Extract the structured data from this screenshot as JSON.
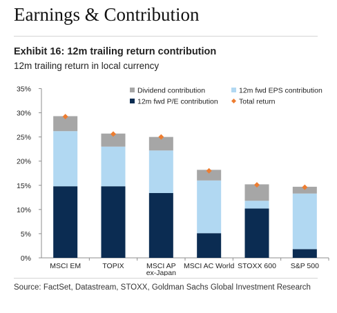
{
  "page": {
    "heading": "Earnings & Contribution",
    "exhibit_title": "Exhibit 16: 12m trailing return contribution",
    "subtitle": "12m trailing return in local currency",
    "source": "Source: FactSet, Datastream, STOXX, Goldman Sachs Global Investment Research"
  },
  "chart_data": {
    "type": "bar",
    "stacked": true,
    "categories": [
      "MSCI EM",
      "TOPIX",
      "MSCI AP ex-Japan",
      "MSCI AC World",
      "STOXX 600",
      "S&P 500"
    ],
    "category_label_lines": [
      [
        "MSCI EM"
      ],
      [
        "TOPIX"
      ],
      [
        "MSCI AP",
        "ex-Japan"
      ],
      [
        "MSCI AC World"
      ],
      [
        "STOXX 600"
      ],
      [
        "S&P 500"
      ]
    ],
    "series": [
      {
        "name": "12m fwd P/E contribution",
        "color": "#0b2c52",
        "values": [
          14.8,
          14.8,
          13.4,
          5.1,
          10.2,
          1.8
        ]
      },
      {
        "name": "12m fwd EPS contribution",
        "color": "#b1d8f2",
        "values": [
          11.4,
          8.2,
          8.8,
          10.9,
          1.6,
          11.5
        ]
      },
      {
        "name": "Dividend contribution",
        "color": "#a6a6a6",
        "values": [
          3.1,
          2.7,
          2.8,
          2.2,
          3.4,
          1.4
        ]
      }
    ],
    "total_return": {
      "name": "Total return",
      "color": "#ed7d31",
      "values": [
        29.2,
        25.6,
        25.0,
        18.0,
        15.1,
        14.6
      ]
    },
    "legend": {
      "position": "top",
      "order": [
        "Dividend contribution",
        "12m fwd EPS contribution",
        "12m fwd P/E contribution",
        "Total return"
      ]
    },
    "ylim": [
      0,
      35
    ],
    "yticks": [
      0,
      5,
      10,
      15,
      20,
      25,
      30,
      35
    ],
    "ytick_labels": [
      "0%",
      "5%",
      "10%",
      "15%",
      "20%",
      "25%",
      "30%",
      "35%"
    ],
    "grid": false
  }
}
